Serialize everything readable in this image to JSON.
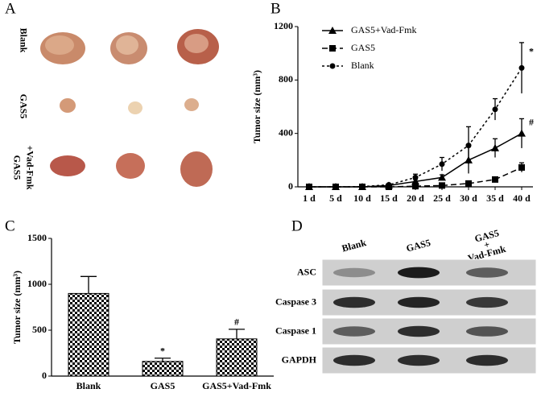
{
  "figure": {
    "panel_labels": [
      "A",
      "B",
      "C",
      "D"
    ]
  },
  "photo": {
    "row_labels": [
      [
        "Blank"
      ],
      [
        "GAS5"
      ],
      [
        "GAS5",
        "+Vad-Fmk"
      ]
    ]
  },
  "chart_data": [
    {
      "type": "line",
      "ylabel": "Tumor size (mm³)",
      "categories": [
        "1 d",
        "5 d",
        "10 d",
        "15 d",
        "20 d",
        "25 d",
        "30 d",
        "35 d",
        "40 d"
      ],
      "ylim": [
        0,
        1200
      ],
      "yticks": [
        0,
        400,
        800,
        1200
      ],
      "legend": "top-left",
      "series": [
        {
          "name": "GAS5+Vad-Fmk",
          "color": "#000000",
          "dash": "solid",
          "marker": "triangle",
          "annotation": "#",
          "values": [
            0,
            0,
            0,
            10,
            40,
            70,
            200,
            290,
            400
          ],
          "errors": [
            0,
            0,
            0,
            5,
            15,
            20,
            100,
            70,
            110
          ]
        },
        {
          "name": "GAS5",
          "color": "#000000",
          "dash": "long",
          "marker": "square",
          "values": [
            0,
            0,
            0,
            0,
            5,
            10,
            25,
            55,
            145
          ],
          "errors": [
            0,
            0,
            0,
            0,
            3,
            5,
            8,
            10,
            35
          ]
        },
        {
          "name": "Blank",
          "color": "#000000",
          "dash": "short",
          "marker": "circle",
          "annotation": "*",
          "values": [
            0,
            0,
            2,
            15,
            70,
            170,
            310,
            580,
            890
          ],
          "errors": [
            0,
            0,
            2,
            5,
            25,
            50,
            140,
            80,
            190
          ]
        }
      ]
    },
    {
      "type": "bar",
      "ylabel": "Tumor size (mm³)",
      "categories": [
        "Blank",
        "GAS5",
        "GAS5+Vad-Fmk"
      ],
      "values": [
        900,
        160,
        405
      ],
      "errors": [
        185,
        35,
        105
      ],
      "annotations": [
        null,
        "*",
        "#"
      ],
      "color": "#000000",
      "ylim": [
        0,
        1500
      ],
      "yticks": [
        0,
        500,
        1000,
        1500
      ]
    }
  ],
  "blot": {
    "column_labels": [
      [
        "Blank"
      ],
      [
        "GAS5"
      ],
      [
        "GAS5",
        "+",
        "Vad-Fmk"
      ]
    ],
    "row_labels": [
      "ASC",
      "Caspase 3",
      "Caspase 1",
      "GAPDH"
    ]
  }
}
